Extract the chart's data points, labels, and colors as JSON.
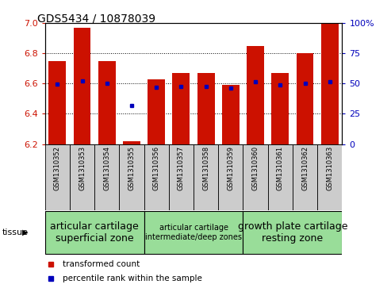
{
  "title": "GDS5434 / 10878039",
  "samples": [
    "GSM1310352",
    "GSM1310353",
    "GSM1310354",
    "GSM1310355",
    "GSM1310356",
    "GSM1310357",
    "GSM1310358",
    "GSM1310359",
    "GSM1310360",
    "GSM1310361",
    "GSM1310362",
    "GSM1310363"
  ],
  "bar_values": [
    6.75,
    6.97,
    6.75,
    6.22,
    6.63,
    6.67,
    6.67,
    6.59,
    6.85,
    6.67,
    6.8,
    7.0
  ],
  "percentile_values": [
    6.595,
    6.615,
    6.6,
    6.455,
    6.573,
    6.578,
    6.578,
    6.568,
    6.613,
    6.593,
    6.6,
    6.613
  ],
  "ymin": 6.2,
  "ymax": 7.0,
  "yticks": [
    6.2,
    6.4,
    6.6,
    6.8,
    7.0
  ],
  "bar_color": "#cc1100",
  "percentile_color": "#0000bb",
  "tissue_groups": [
    {
      "label": "articular cartilage\nsuperficial zone",
      "start": 0,
      "end": 3,
      "fontsize": 9
    },
    {
      "label": "articular cartilage\nintermediate/deep zones",
      "start": 4,
      "end": 7,
      "fontsize": 7
    },
    {
      "label": "growth plate cartilage\nresting zone",
      "start": 8,
      "end": 11,
      "fontsize": 9
    }
  ],
  "tissue_label": "tissue",
  "legend_bar_label": "transformed count",
  "legend_pct_label": "percentile rank within the sample",
  "group_color": "#99dd99",
  "sample_bg_color": "#cccccc",
  "plot_bg_color": "#ffffff"
}
